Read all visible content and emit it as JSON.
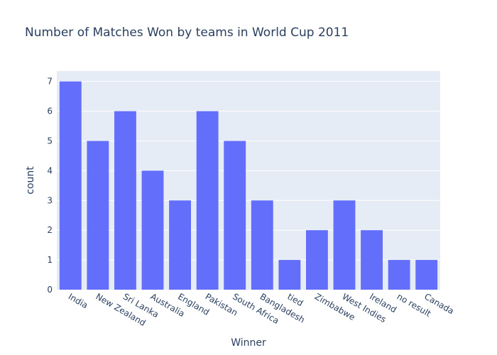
{
  "chart_data": {
    "type": "bar",
    "title": "Number of Matches Won by teams in  World Cup 2011",
    "xlabel": "Winner",
    "ylabel": "count",
    "categories": [
      "India",
      "New Zealand",
      "Sri Lanka",
      "Australia",
      "England",
      "Pakistan",
      "South Africa",
      "Bangladesh",
      "tied",
      "Zimbabwe",
      "West Indies",
      "Ireland",
      "no result",
      "Canada"
    ],
    "values": [
      7,
      5,
      6,
      4,
      3,
      6,
      5,
      3,
      1,
      2,
      3,
      2,
      1,
      1
    ],
    "ylim": [
      0,
      7.35
    ],
    "yticks": [
      0,
      1,
      2,
      3,
      4,
      5,
      6,
      7
    ],
    "grid": true,
    "bar_color": "#636efa",
    "plot_background": "#e5ecf6"
  }
}
